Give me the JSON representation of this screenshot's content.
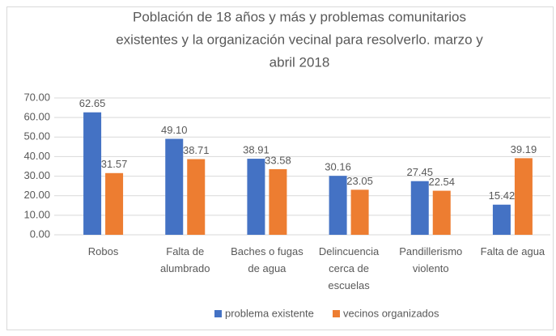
{
  "chart_data": {
    "type": "bar",
    "title": [
      "Población de 18 años y más y problemas comunitarios",
      "existentes y la organización vecinal para resolverlo. marzo y",
      "abril 2018"
    ],
    "categories": [
      "Robos",
      "Falta de alumbrado",
      "Baches o fugas de agua",
      "Delincuencia cerca de escuelas",
      "Pandillerismo violento",
      "Falta de agua"
    ],
    "series": [
      {
        "name": "problema existente",
        "color": "#4472c4",
        "values": [
          62.65,
          49.1,
          38.91,
          30.16,
          27.45,
          15.42
        ],
        "value_labels": [
          "62.65",
          "49.10",
          "38.91",
          "30.16",
          "27.45",
          "15.42"
        ]
      },
      {
        "name": "vecinos organizados",
        "color": "#ed7d31",
        "values": [
          31.57,
          38.71,
          33.58,
          23.05,
          22.54,
          39.19
        ],
        "value_labels": [
          "31.57",
          "38.71",
          "33.58",
          "23.05",
          "22.54",
          "39.19"
        ]
      }
    ],
    "ylim": [
      0,
      70
    ],
    "yticks": [
      {
        "value": 0,
        "label": "0.00"
      },
      {
        "value": 10,
        "label": "10.00"
      },
      {
        "value": 20,
        "label": "20.00"
      },
      {
        "value": 30,
        "label": "30.00"
      },
      {
        "value": 40,
        "label": "40.00"
      },
      {
        "value": 50,
        "label": "50.00"
      },
      {
        "value": 60,
        "label": "60.00"
      },
      {
        "value": 70,
        "label": "70.00"
      }
    ],
    "grid": true,
    "legend": "bottom"
  }
}
